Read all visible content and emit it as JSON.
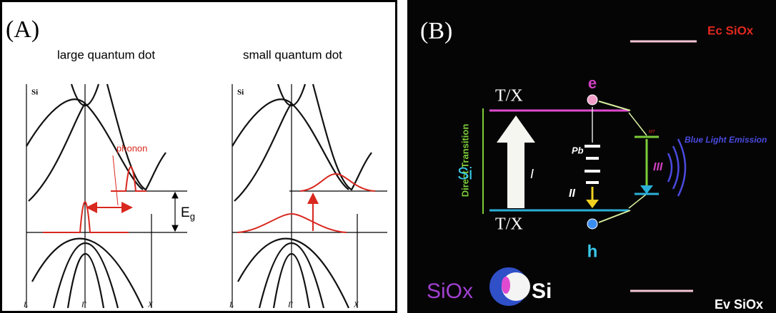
{
  "panel_a": {
    "label": "(A)",
    "left": {
      "title": "large quantum dot",
      "material": "Si",
      "axis": [
        "L",
        "Γ",
        "X"
      ],
      "annotation": "phonon"
    },
    "right": {
      "title": "small quantum dot",
      "material": "Si",
      "axis": [
        "L",
        "Γ",
        "X"
      ]
    },
    "gap_label": {
      "main": "E",
      "sub": "g"
    }
  },
  "panel_b": {
    "label": "(B)",
    "ec_label": "Ec SiOx",
    "ev_label": "Ev SiOx",
    "top_level": "T/X",
    "bottom_level": "T/X",
    "direct_transition": "Direct Transition",
    "si_label": "Si",
    "electron": "e",
    "hole": "h",
    "pb": "Pb",
    "mt": "MT",
    "transitions": [
      "I",
      "II",
      "III"
    ],
    "emission": "Blue Light Emission",
    "siox": "SiOx",
    "si_core": "Si"
  }
}
